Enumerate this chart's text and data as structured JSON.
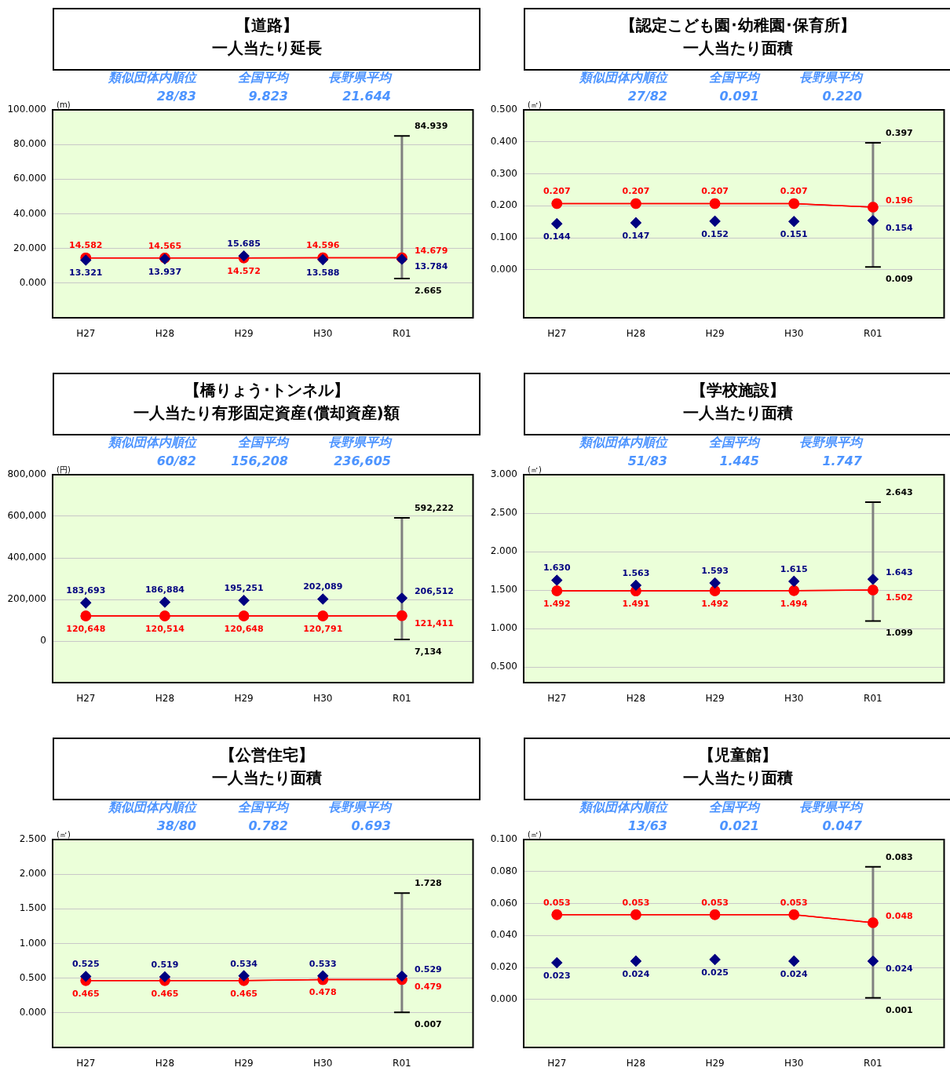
{
  "chart_data": [
    {
      "type": "line",
      "title": "【道路】",
      "subtitle": "一人当たり延長",
      "ylabel": "(m)",
      "categories": [
        "H27",
        "H28",
        "H29",
        "H30",
        "R01"
      ],
      "ylim": [
        -20,
        100
      ],
      "yticks": [
        {
          "value": 0,
          "label": "0.000"
        },
        {
          "value": 20,
          "label": "20.000"
        },
        {
          "value": 40,
          "label": "40.000"
        },
        {
          "value": 60,
          "label": "60.000"
        },
        {
          "value": 80,
          "label": "80.000"
        },
        {
          "value": 100,
          "label": "100.000"
        }
      ],
      "grid": "y",
      "series": [
        {
          "type": "line",
          "color": "#ff0000",
          "marker": "circle",
          "values": [
            14.582,
            14.565,
            14.572,
            14.596,
            14.679
          ],
          "value_labels": [
            "14.582",
            "14.565",
            "14.572",
            "14.596",
            "14.679"
          ]
        },
        {
          "type": "scatter",
          "color": "#000080",
          "marker": "diamond",
          "values": [
            13.321,
            13.937,
            15.685,
            13.588,
            13.784
          ],
          "value_labels": [
            "13.321",
            "13.937",
            "15.685",
            "13.588",
            "13.784"
          ],
          "errors": [
            null,
            null,
            null,
            null,
            [
              2.665,
              84.939
            ]
          ]
        }
      ],
      "annotations": [
        "類似団体内順位",
        "全国平均",
        "長野県平均",
        "28/83",
        "9.823",
        "21.644",
        {
          "text": "84.939",
          "x": "R01",
          "y": 84.939
        },
        {
          "text": "2.665",
          "x": "R01",
          "y": 2.665
        }
      ]
    },
    {
      "type": "line",
      "title": "【認定こども園･幼稚園･保育所】",
      "subtitle": "一人当たり面積",
      "ylabel": "(㎡)",
      "categories": [
        "H27",
        "H28",
        "H29",
        "H30",
        "R01"
      ],
      "ylim": [
        -0.15,
        0.5
      ],
      "yticks": [
        {
          "value": 0,
          "label": "0.000"
        },
        {
          "value": 0.1,
          "label": "0.100"
        },
        {
          "value": 0.2,
          "label": "0.200"
        },
        {
          "value": 0.3,
          "label": "0.300"
        },
        {
          "value": 0.4,
          "label": "0.400"
        },
        {
          "value": 0.5,
          "label": "0.500"
        }
      ],
      "grid": "y",
      "series": [
        {
          "type": "line",
          "color": "#ff0000",
          "marker": "circle",
          "values": [
            0.207,
            0.207,
            0.207,
            0.207,
            0.196
          ],
          "value_labels": [
            "0.207",
            "0.207",
            "0.207",
            "0.207",
            "0.196"
          ]
        },
        {
          "type": "scatter",
          "color": "#000080",
          "marker": "diamond",
          "values": [
            0.144,
            0.147,
            0.152,
            0.151,
            0.154
          ],
          "value_labels": [
            "0.144",
            "0.147",
            "0.152",
            "0.151",
            "0.154"
          ],
          "errors": [
            null,
            null,
            null,
            null,
            [
              0.009,
              0.397
            ]
          ]
        }
      ],
      "annotations": [
        "類似団体内順位",
        "全国平均",
        "長野県平均",
        "27/82",
        "0.091",
        "0.220",
        {
          "text": "0.397",
          "x": "R01",
          "y": 0.397
        },
        {
          "text": "0.009",
          "x": "R01",
          "y": 0.009
        }
      ]
    },
    {
      "type": "line",
      "title": "【橋りょう･トンネル】",
      "subtitle": "一人当たり有形固定資産(償却資産)額",
      "ylabel": "(円)",
      "categories": [
        "H27",
        "H28",
        "H29",
        "H30",
        "R01"
      ],
      "ylim": [
        -200000,
        800000
      ],
      "yticks": [
        0,
        {
          "value": 200000,
          "label": "200,000"
        },
        {
          "value": 400000,
          "label": "400,000"
        },
        {
          "value": 600000,
          "label": "600,000"
        },
        {
          "value": 800000,
          "label": "800,000"
        }
      ],
      "grid": "y",
      "series": [
        {
          "type": "line",
          "color": "#ff0000",
          "marker": "circle",
          "values": [
            120648,
            120514,
            120648,
            120791,
            121411
          ],
          "value_labels": [
            "120,648",
            "120,514",
            "120,648",
            "120,791",
            "121,411"
          ]
        },
        {
          "type": "scatter",
          "color": "#000080",
          "marker": "diamond",
          "values": [
            183693,
            186884,
            195251,
            202089,
            206512
          ],
          "value_labels": [
            "183,693",
            "186,884",
            "195,251",
            "202,089",
            "206,512"
          ],
          "errors": [
            null,
            null,
            null,
            null,
            [
              7134,
              592222
            ]
          ]
        }
      ],
      "annotations": [
        "類似団体内順位",
        "全国平均",
        "長野県平均",
        "60/82",
        "156,208",
        "236,605",
        {
          "text": "592,222",
          "x": "R01",
          "y": 592222
        },
        {
          "text": "7,134",
          "x": "R01",
          "y": 7134
        }
      ]
    },
    {
      "type": "line",
      "title": "【学校施設】",
      "subtitle": "一人当たり面積",
      "ylabel": "(㎡)",
      "categories": [
        "H27",
        "H28",
        "H29",
        "H30",
        "R01"
      ],
      "ylim": [
        0.3,
        3
      ],
      "yticks": [
        {
          "value": 0.5,
          "label": "0.500"
        },
        {
          "value": 1,
          "label": "1.000"
        },
        {
          "value": 1.5,
          "label": "1.500"
        },
        {
          "value": 2,
          "label": "2.000"
        },
        {
          "value": 2.5,
          "label": "2.500"
        },
        {
          "value": 3,
          "label": "3.000"
        }
      ],
      "grid": "y",
      "series": [
        {
          "type": "line",
          "color": "#ff0000",
          "marker": "circle",
          "values": [
            1.492,
            1.491,
            1.492,
            1.494,
            1.502
          ],
          "value_labels": [
            "1.492",
            "1.491",
            "1.492",
            "1.494",
            "1.502"
          ]
        },
        {
          "type": "scatter",
          "color": "#000080",
          "marker": "diamond",
          "values": [
            1.63,
            1.563,
            1.593,
            1.615,
            1.643
          ],
          "value_labels": [
            "1.630",
            "1.563",
            "1.593",
            "1.615",
            "1.643"
          ],
          "errors": [
            null,
            null,
            null,
            null,
            [
              1.099,
              2.643
            ]
          ]
        }
      ],
      "annotations": [
        "類似団体内順位",
        "全国平均",
        "長野県平均",
        "51/83",
        "1.445",
        "1.747",
        {
          "text": "2.643",
          "x": "R01",
          "y": 2.643
        },
        {
          "text": "1.099",
          "x": "R01",
          "y": 1.099
        }
      ]
    },
    {
      "type": "line",
      "title": "【公営住宅】",
      "subtitle": "一人当たり面積",
      "ylabel": "(㎡)",
      "categories": [
        "H27",
        "H28",
        "H29",
        "H30",
        "R01"
      ],
      "ylim": [
        -0.5,
        2.5
      ],
      "yticks": [
        {
          "value": 0,
          "label": "0.000"
        },
        {
          "value": 0.5,
          "label": "0.500"
        },
        {
          "value": 1,
          "label": "1.000"
        },
        {
          "value": 1.5,
          "label": "1.500"
        },
        {
          "value": 2,
          "label": "2.000"
        },
        {
          "value": 2.5,
          "label": "2.500"
        }
      ],
      "grid": "y",
      "series": [
        {
          "type": "line",
          "color": "#ff0000",
          "marker": "circle",
          "values": [
            0.465,
            0.465,
            0.465,
            0.478,
            0.479
          ],
          "value_labels": [
            "0.465",
            "0.465",
            "0.465",
            "0.478",
            "0.479"
          ]
        },
        {
          "type": "scatter",
          "color": "#000080",
          "marker": "diamond",
          "values": [
            0.525,
            0.519,
            0.534,
            0.533,
            0.529
          ],
          "value_labels": [
            "0.525",
            "0.519",
            "0.534",
            "0.533",
            "0.529"
          ],
          "errors": [
            null,
            null,
            null,
            null,
            [
              0.007,
              1.728
            ]
          ]
        }
      ],
      "annotations": [
        "類似団体内順位",
        "全国平均",
        "長野県平均",
        "38/80",
        "0.782",
        "0.693",
        {
          "text": "1.728",
          "x": "R01",
          "y": 1.728
        },
        {
          "text": "0.007",
          "x": "R01",
          "y": 0.007
        }
      ]
    },
    {
      "type": "line",
      "title": "【児童館】",
      "subtitle": "一人当たり面積",
      "ylabel": "(㎡)",
      "categories": [
        "H27",
        "H28",
        "H29",
        "H30",
        "R01"
      ],
      "ylim": [
        -0.03,
        0.1
      ],
      "yticks": [
        {
          "value": 0,
          "label": "0.000"
        },
        {
          "value": 0.02,
          "label": "0.020"
        },
        {
          "value": 0.04,
          "label": "0.040"
        },
        {
          "value": 0.06,
          "label": "0.060"
        },
        {
          "value": 0.08,
          "label": "0.080"
        },
        {
          "value": 0.1,
          "label": "0.100"
        }
      ],
      "grid": "y",
      "series": [
        {
          "type": "line",
          "color": "#ff0000",
          "marker": "circle",
          "values": [
            0.053,
            0.053,
            0.053,
            0.053,
            0.048
          ],
          "value_labels": [
            "0.053",
            "0.053",
            "0.053",
            "0.053",
            "0.048"
          ]
        },
        {
          "type": "scatter",
          "color": "#000080",
          "marker": "diamond",
          "values": [
            0.023,
            0.024,
            0.025,
            0.024,
            0.024
          ],
          "value_labels": [
            "0.023",
            "0.024",
            "0.025",
            "0.024",
            "0.024"
          ],
          "errors": [
            null,
            null,
            null,
            null,
            [
              0.001,
              0.083
            ]
          ]
        }
      ],
      "annotations": [
        "類似団体内順位",
        "全国平均",
        "長野県平均",
        "13/63",
        "0.021",
        "0.047",
        {
          "text": "0.083",
          "x": "R01",
          "y": 0.083
        },
        {
          "text": "0.001",
          "x": "R01",
          "y": 0.001
        }
      ]
    }
  ]
}
